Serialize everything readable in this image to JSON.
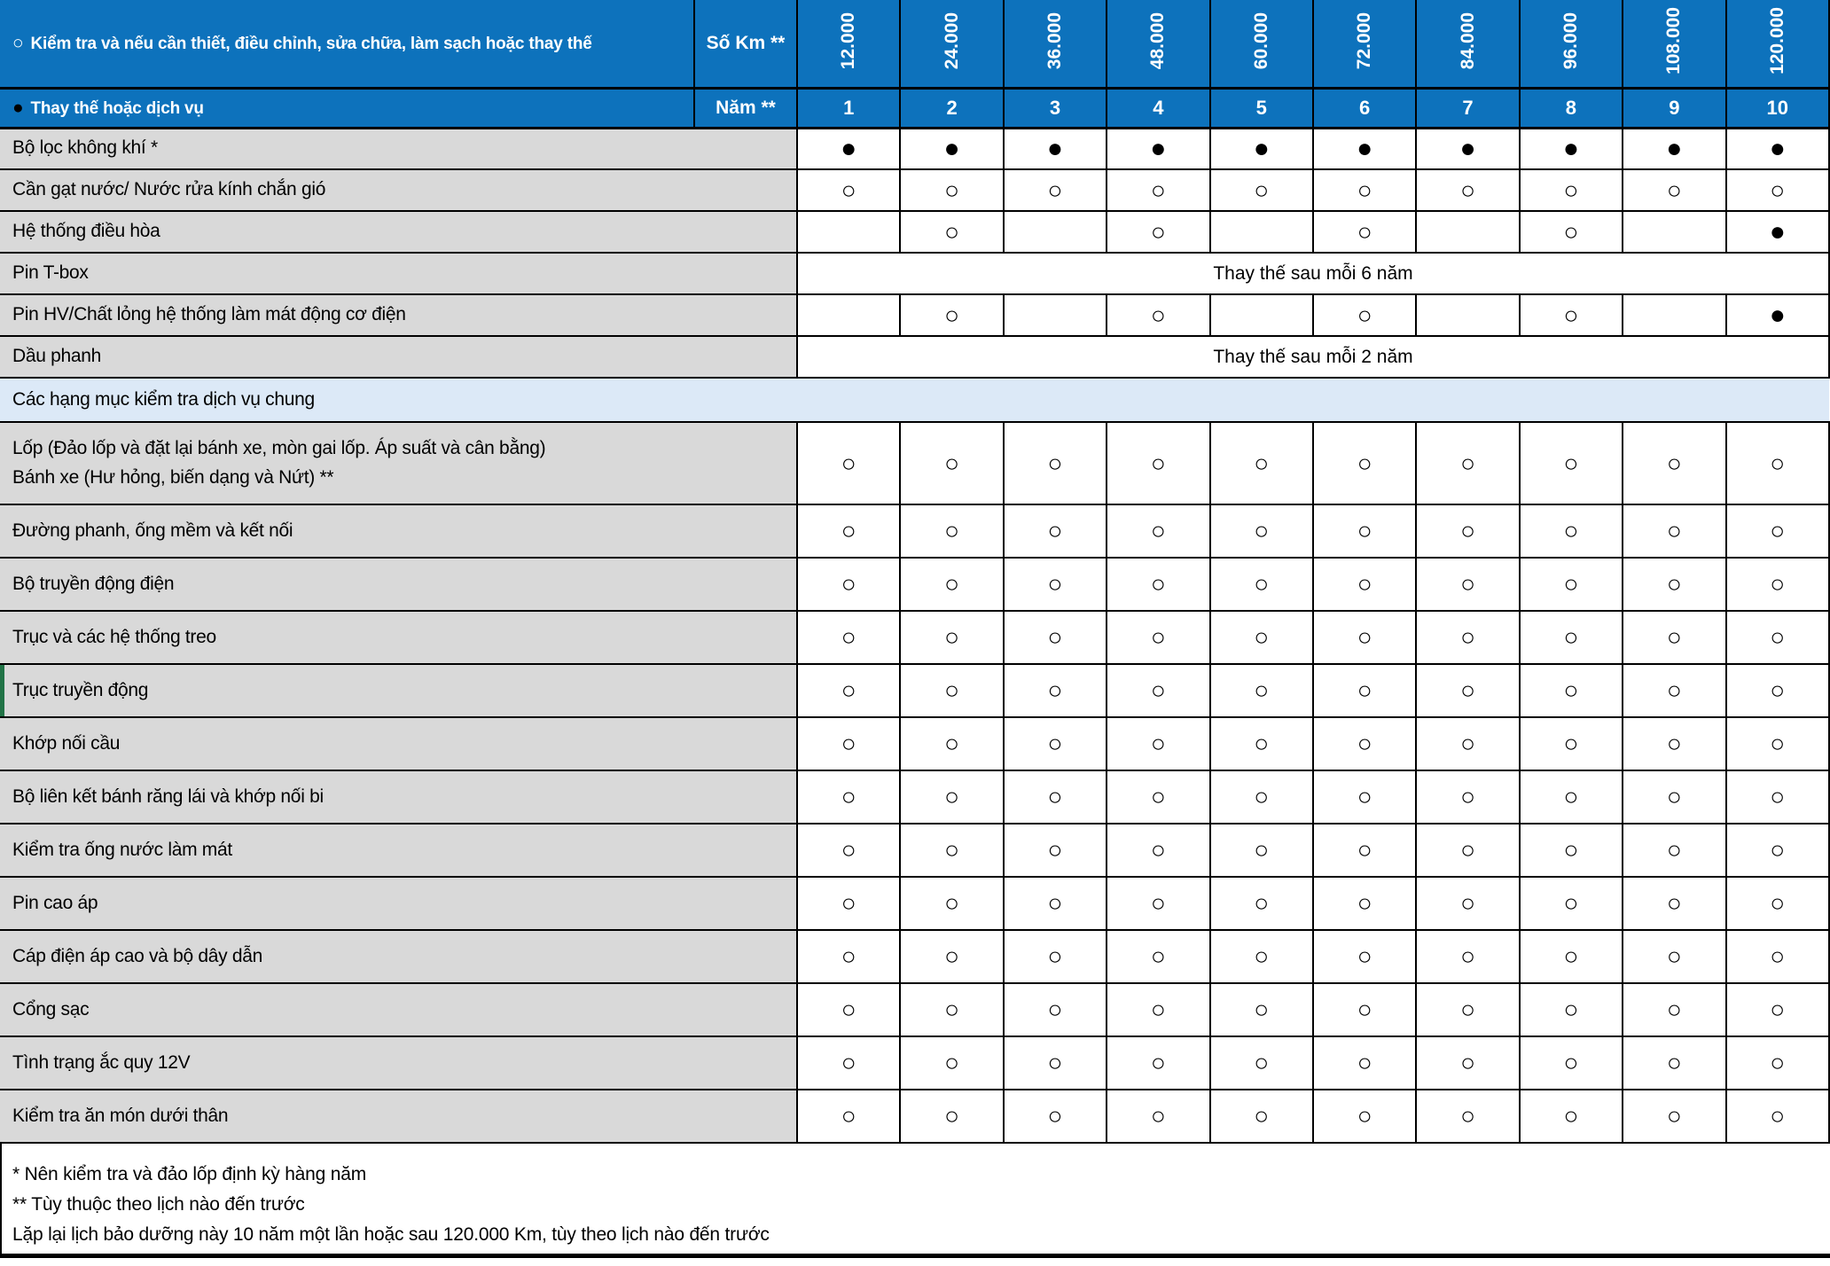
{
  "legend": {
    "inspect_symbol": "○",
    "inspect": "Kiểm tra và nếu cần thiết, điều chỉnh, sửa chữa, làm sạch hoặc thay thế",
    "replace_symbol": "●",
    "replace": "Thay thế hoặc dịch vụ"
  },
  "header": {
    "km_label": "Số Km **",
    "year_label": "Năm **",
    "km_values": [
      "12.000",
      "24.000",
      "36.000",
      "48.000",
      "60.000",
      "72.000",
      "84.000",
      "96.000",
      "108.000",
      "120.000"
    ],
    "year_values": [
      "1",
      "2",
      "3",
      "4",
      "5",
      "6",
      "7",
      "8",
      "9",
      "10"
    ]
  },
  "rows": [
    {
      "label": "Bộ lọc không khí *",
      "cells": [
        "●",
        "●",
        "●",
        "●",
        "●",
        "●",
        "●",
        "●",
        "●",
        "●"
      ]
    },
    {
      "label": "Cần gạt nước/ Nước rửa kính chắn gió",
      "cells": [
        "○",
        "○",
        "○",
        "○",
        "○",
        "○",
        "○",
        "○",
        "○",
        "○"
      ]
    },
    {
      "label": "Hệ thống điều hòa",
      "cells": [
        "",
        "○",
        "",
        "○",
        "",
        "○",
        "",
        "○",
        "",
        "●"
      ]
    },
    {
      "label": "Pin T-box",
      "span": "Thay thế sau mỗi 6 năm"
    },
    {
      "label": "Pin HV/Chất lỏng hệ thống làm mát động cơ điện",
      "cells": [
        "",
        "○",
        "",
        "○",
        "",
        "○",
        "",
        "○",
        "",
        "●"
      ]
    },
    {
      "label": "Dầu phanh",
      "span": "Thay thế sau mỗi 2 năm"
    },
    {
      "section": "Các hạng mục kiểm tra dịch vụ chung"
    },
    {
      "label": "Lốp (Đảo lốp và đặt lại bánh xe, mòn gai lốp. Áp suất và cân bằng)",
      "label2": "Bánh xe (Hư hỏng, biến dạng và Nứt) **",
      "cells": [
        "○",
        "○",
        "○",
        "○",
        "○",
        "○",
        "○",
        "○",
        "○",
        "○"
      ]
    },
    {
      "label": "Đường phanh, ống mềm và kết nối",
      "cells": [
        "○",
        "○",
        "○",
        "○",
        "○",
        "○",
        "○",
        "○",
        "○",
        "○"
      ]
    },
    {
      "label": "Bộ truyền động điện",
      "cells": [
        "○",
        "○",
        "○",
        "○",
        "○",
        "○",
        "○",
        "○",
        "○",
        "○"
      ]
    },
    {
      "label": "Trục và các hệ thống treo",
      "cells": [
        "○",
        "○",
        "○",
        "○",
        "○",
        "○",
        "○",
        "○",
        "○",
        "○"
      ]
    },
    {
      "label": "Trục truyền động",
      "left_accent": true,
      "cells": [
        "○",
        "○",
        "○",
        "○",
        "○",
        "○",
        "○",
        "○",
        "○",
        "○"
      ]
    },
    {
      "label": "Khớp nối cầu",
      "cells": [
        "○",
        "○",
        "○",
        "○",
        "○",
        "○",
        "○",
        "○",
        "○",
        "○"
      ]
    },
    {
      "label": "Bộ liên kết bánh răng lái và khớp nối bi",
      "cells": [
        "○",
        "○",
        "○",
        "○",
        "○",
        "○",
        "○",
        "○",
        "○",
        "○"
      ]
    },
    {
      "label": "Kiểm tra ống nước làm mát",
      "cells": [
        "○",
        "○",
        "○",
        "○",
        "○",
        "○",
        "○",
        "○",
        "○",
        "○"
      ]
    },
    {
      "label": "Pin cao áp",
      "cells": [
        "○",
        "○",
        "○",
        "○",
        "○",
        "○",
        "○",
        "○",
        "○",
        "○"
      ]
    },
    {
      "label": "Cáp điện áp cao và bộ dây dẫn",
      "cells": [
        "○",
        "○",
        "○",
        "○",
        "○",
        "○",
        "○",
        "○",
        "○",
        "○"
      ]
    },
    {
      "label": "Cổng sạc",
      "cells": [
        "○",
        "○",
        "○",
        "○",
        "○",
        "○",
        "○",
        "○",
        "○",
        "○"
      ]
    },
    {
      "label": "Tình trạng ắc quy 12V",
      "cells": [
        "○",
        "○",
        "○",
        "○",
        "○",
        "○",
        "○",
        "○",
        "○",
        "○"
      ]
    },
    {
      "label": "Kiểm tra ăn món dưới thân",
      "cells": [
        "○",
        "○",
        "○",
        "○",
        "○",
        "○",
        "○",
        "○",
        "○",
        "○"
      ]
    }
  ],
  "footnotes": [
    "* Nên kiểm tra và đảo lốp định kỳ hàng năm",
    "** Tùy thuộc theo lịch nào đến trước",
    "Lặp lại lịch bảo dưỡng này 10 năm một lần hoặc sau 120.000 Km, tùy theo lịch nào đến trước"
  ],
  "colors": {
    "header_blue": "#0D72BC",
    "label_gray": "#D9D9D9",
    "section_light_blue": "#DCE9F7",
    "accent_green": "#217346",
    "border_black": "#000000"
  }
}
